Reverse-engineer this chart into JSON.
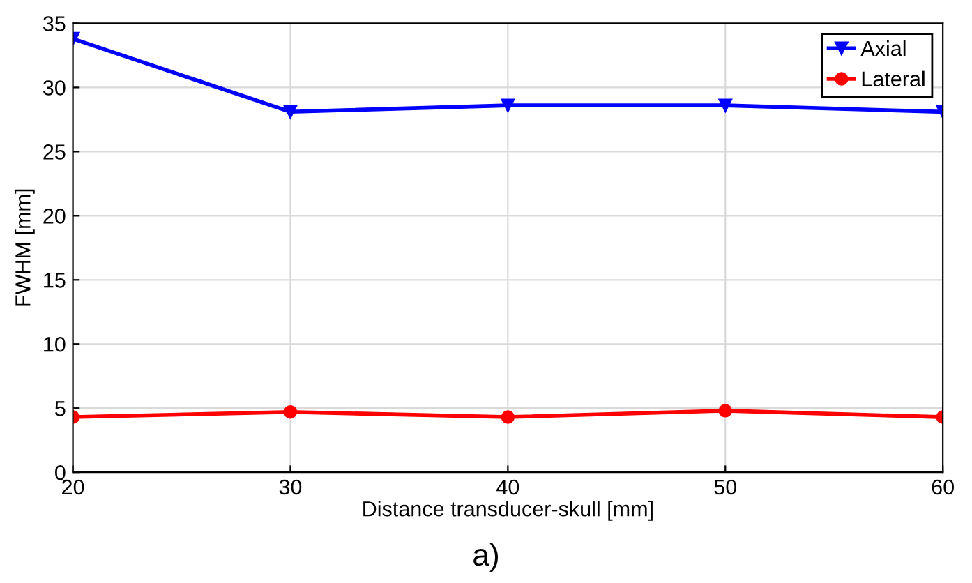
{
  "chart_data": {
    "type": "line",
    "xlabel": "Distance transducer-skull [mm]",
    "ylabel": "FWHM [mm]",
    "x": [
      20,
      30,
      40,
      50,
      60
    ],
    "series": [
      {
        "name": "Axial",
        "color": "#0000ff",
        "values": [
          33.8,
          28.1,
          28.6,
          28.6,
          28.1
        ],
        "marker": "triangle"
      },
      {
        "name": "Lateral",
        "color": "#ff0000",
        "values": [
          4.3,
          4.7,
          4.3,
          4.8,
          4.3
        ],
        "marker": "circle"
      }
    ],
    "xlim": [
      20,
      60
    ],
    "xticks": [
      20,
      30,
      40,
      50,
      60
    ],
    "ylim": [
      0,
      35
    ],
    "yticks": [
      0,
      5,
      10,
      15,
      20,
      25,
      30,
      35
    ],
    "grid": true,
    "legend": "top right",
    "line_style": "solid",
    "annotations": [
      "a)"
    ]
  }
}
